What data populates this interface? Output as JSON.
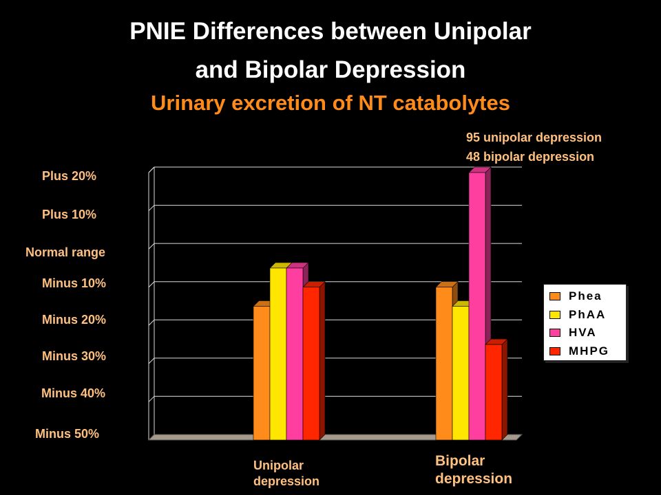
{
  "title_line1": "PNIE Differences between Unipolar",
  "title_line2": "and Bipolar Depression",
  "subtitle": "Urinary excretion of NT catabolytes",
  "notes": [
    "95 unipolar depression",
    "48 bipolar depression"
  ],
  "colors": {
    "Phea": "#ff8c1a",
    "PhAA": "#ffe600",
    "HVA": "#ff3fa0",
    "MHPG": "#ff2600"
  },
  "chart_data": {
    "type": "bar",
    "title": "PNIE Differences between Unipolar and Bipolar Depression",
    "subtitle": "Urinary excretion of NT catabolytes",
    "y_tick_labels": [
      "Plus 20%",
      "Plus 10%",
      "Normal range",
      "Minus 10%",
      "Minus 20%",
      "Minus 30%",
      "Minus 40%",
      "Minus 50%"
    ],
    "y_tick_values": [
      20,
      10,
      0,
      -10,
      -20,
      -30,
      -40,
      -50
    ],
    "ylim": [
      -50,
      20
    ],
    "categories": [
      "Unipolar depression",
      "Bipolar depression"
    ],
    "series": [
      {
        "name": "Phea",
        "values": [
          -15,
          -10
        ]
      },
      {
        "name": "PhAA",
        "values": [
          -5,
          -15
        ]
      },
      {
        "name": "HVA",
        "values": [
          -5,
          20
        ]
      },
      {
        "name": "MHPG",
        "values": [
          -10,
          -25
        ]
      }
    ],
    "legend": "right",
    "grid": true
  }
}
